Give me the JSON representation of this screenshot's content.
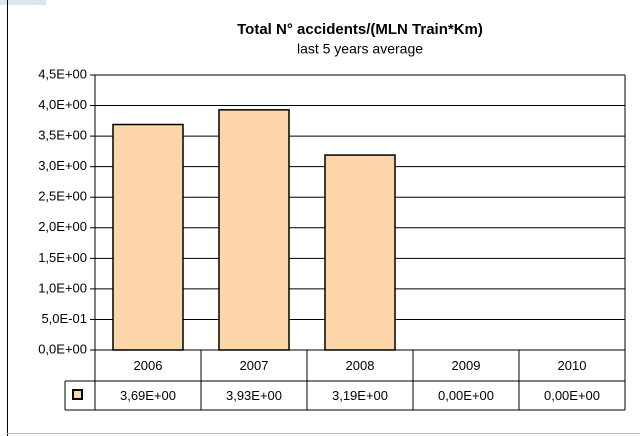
{
  "chart_data": {
    "type": "bar",
    "title": "Total N° accidents/(MLN Train*Km)",
    "subtitle": "last 5 years average",
    "categories": [
      "2006",
      "2007",
      "2008",
      "2009",
      "2010"
    ],
    "values": [
      3.69,
      3.93,
      3.19,
      0,
      0
    ],
    "value_labels": [
      "3,69E+00",
      "3,93E+00",
      "3,19E+00",
      "0,00E+00",
      "0,00E+00"
    ],
    "color": "#fcd5a8",
    "ylim": [
      0,
      4.5
    ],
    "yticks": [
      {
        "value": 0,
        "label": "0,0E+00"
      },
      {
        "value": 0.5,
        "label": "5,0E-01"
      },
      {
        "value": 1,
        "label": "1,0E+00"
      },
      {
        "value": 1.5,
        "label": "1,5E+00"
      },
      {
        "value": 2,
        "label": "2,0E+00"
      },
      {
        "value": 2.5,
        "label": "2,5E+00"
      },
      {
        "value": 3,
        "label": "3,0E+00"
      },
      {
        "value": 3.5,
        "label": "3,5E+00"
      },
      {
        "value": 4,
        "label": "4,0E+00"
      },
      {
        "value": 4.5,
        "label": "4,5E+00"
      }
    ],
    "grid": true
  }
}
